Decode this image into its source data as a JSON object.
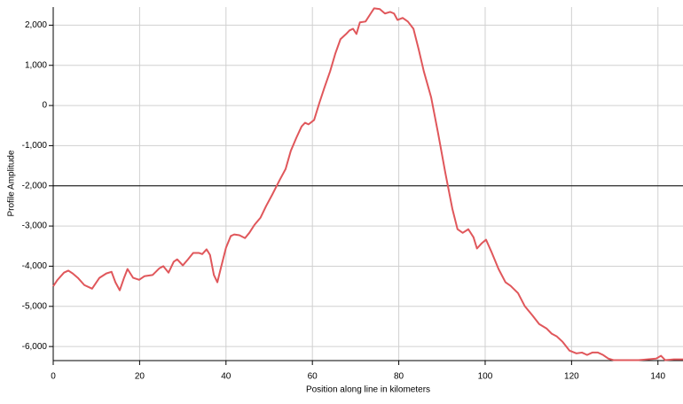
{
  "chart_data": {
    "type": "line",
    "x_label": "Position along line in kilometers",
    "y_label": "Profile Amplitude",
    "x": [
      0,
      1,
      2.5,
      3.5,
      4.5,
      5.7,
      7.2,
      9,
      10.7,
      12.3,
      13.5,
      14.4,
      15.4,
      16.4,
      17.2,
      18.5,
      19.9,
      21.1,
      23,
      24.6,
      25.5,
      26.7,
      27.9,
      28.7,
      30,
      31.2,
      32.4,
      33.7,
      34.5,
      35.5,
      36.3,
      37.2,
      38,
      38.8,
      40,
      41.1,
      41.9,
      43.1,
      44.4,
      45.4,
      46.6,
      48,
      49.3,
      50.7,
      52.4,
      53.8,
      55,
      56.3,
      57.5,
      58.3,
      59.1,
      60.4,
      61.6,
      62.8,
      64.1,
      65.3,
      66.5,
      67.8,
      68.6,
      69.4,
      70.2,
      71,
      72.3,
      73.5,
      74.3,
      75.6,
      76.8,
      78,
      78.9,
      79.7,
      80.9,
      82.1,
      83.4,
      84.6,
      85.8,
      87.5,
      89.1,
      90.8,
      92.4,
      93.6,
      94.8,
      96.1,
      97.3,
      98.1,
      99.2,
      100.2,
      101.4,
      103.1,
      104.7,
      105.9,
      107.6,
      109.2,
      110.9,
      112.5,
      114.2,
      115.4,
      116.6,
      117.9,
      119.5,
      121.1,
      122.4,
      123.6,
      124.8,
      126.1,
      127.3,
      128.5,
      129.8,
      131.4,
      133.5,
      135.5,
      137.6,
      139.6,
      140.7,
      141.7,
      143.7,
      145.8
    ],
    "y": [
      -4500,
      -4340,
      -4160,
      -4110,
      -4180,
      -4290,
      -4470,
      -4560,
      -4290,
      -4180,
      -4140,
      -4400,
      -4600,
      -4290,
      -4070,
      -4290,
      -4340,
      -4250,
      -4220,
      -4050,
      -4000,
      -4160,
      -3890,
      -3830,
      -3980,
      -3830,
      -3670,
      -3670,
      -3700,
      -3580,
      -3720,
      -4220,
      -4400,
      -4050,
      -3540,
      -3250,
      -3210,
      -3230,
      -3300,
      -3170,
      -2970,
      -2790,
      -2500,
      -2220,
      -1860,
      -1580,
      -1130,
      -800,
      -520,
      -430,
      -470,
      -360,
      60,
      450,
      850,
      1290,
      1650,
      1780,
      1870,
      1910,
      1780,
      2070,
      2090,
      2290,
      2420,
      2400,
      2290,
      2330,
      2290,
      2130,
      2180,
      2090,
      1910,
      1400,
      850,
      200,
      -690,
      -1690,
      -2570,
      -3080,
      -3170,
      -3080,
      -3280,
      -3560,
      -3430,
      -3340,
      -3630,
      -4070,
      -4400,
      -4490,
      -4670,
      -5000,
      -5220,
      -5440,
      -5550,
      -5680,
      -5750,
      -5880,
      -6100,
      -6170,
      -6150,
      -6210,
      -6150,
      -6150,
      -6210,
      -6300,
      -6340,
      -6340,
      -6340,
      -6340,
      -6320,
      -6300,
      -6230,
      -6340,
      -6320,
      -6320
    ],
    "color": "#e0575b",
    "xlim": [
      0,
      145.8
    ],
    "ylim": [
      -6350,
      2450
    ],
    "xticks": [
      0,
      20,
      40,
      60,
      80,
      100,
      120,
      140
    ],
    "yticks": [
      {
        "value": 2000,
        "label": "2,000"
      },
      {
        "value": 1000,
        "label": "1,000"
      },
      0,
      {
        "value": -1000,
        "label": "-1,000"
      },
      {
        "value": -2000,
        "label": "-2,000"
      },
      {
        "value": -3000,
        "label": "-3,000"
      },
      {
        "value": -4000,
        "label": "-4,000"
      },
      {
        "value": -5000,
        "label": "-5,000"
      },
      {
        "value": -6000,
        "label": "-6,000"
      }
    ],
    "reference_line": -2000,
    "grid": true
  }
}
